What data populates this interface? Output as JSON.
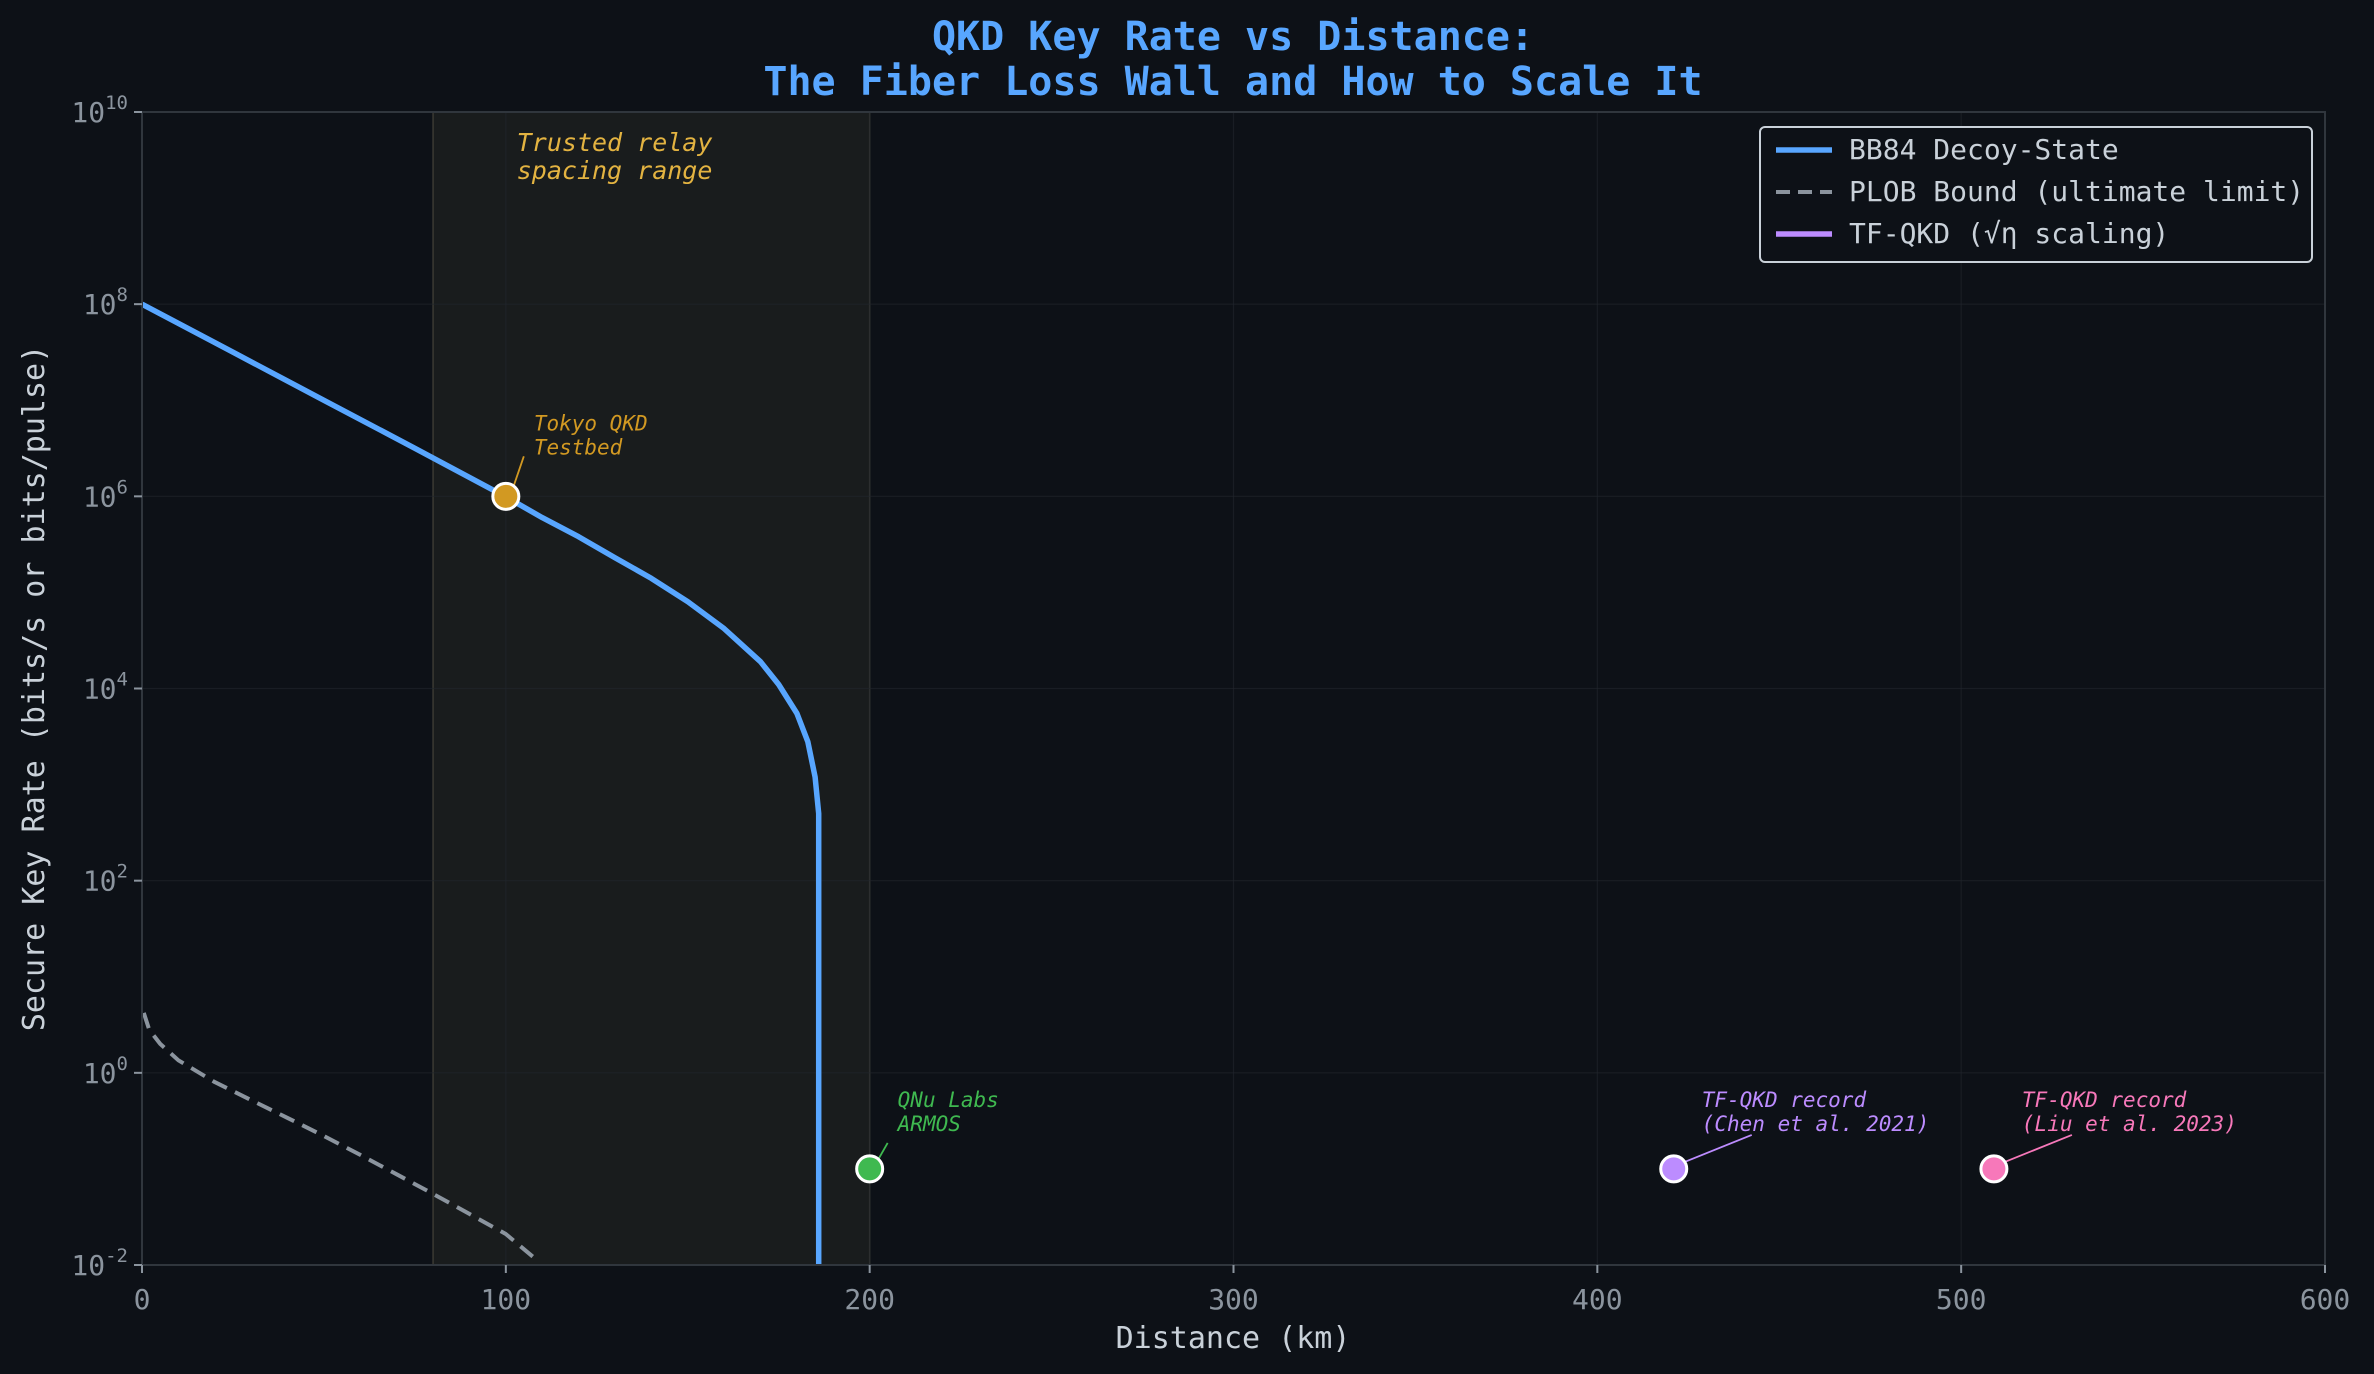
{
  "chart_data": {
    "type": "line",
    "title_line1": "QKD Key Rate vs Distance:",
    "title_line2": "The Fiber Loss Wall and How to Scale It",
    "xlabel": "Distance (km)",
    "ylabel": "Secure Key Rate (bits/s or bits/pulse)",
    "xlim": [
      0,
      600
    ],
    "ylim": [
      0.01,
      10000000000
    ],
    "yscale": "log",
    "x_ticks": [
      "0",
      "100",
      "200",
      "300",
      "400",
      "500",
      "600"
    ],
    "y_tick_base": "10",
    "y_tick_exponents": [
      "-2",
      "0",
      "2",
      "4",
      "6",
      "8",
      "10"
    ],
    "grid": true,
    "legend_position": "top-right",
    "series": [
      {
        "name": "BB84 Decoy-State",
        "color": "#58a6ff",
        "style": "solid",
        "points": [
          [
            0,
            100000000
          ],
          [
            25,
            31600000
          ],
          [
            50,
            10000000
          ],
          [
            75,
            3160000
          ],
          [
            100,
            990000
          ],
          [
            110,
            600000
          ],
          [
            120,
            380000
          ],
          [
            130,
            230000
          ],
          [
            140,
            140000
          ],
          [
            150,
            80000
          ],
          [
            160,
            42000
          ],
          [
            170,
            19000
          ],
          [
            175,
            11000
          ],
          [
            180,
            5500
          ],
          [
            183,
            2800
          ],
          [
            185,
            1200
          ],
          [
            186,
            500
          ],
          [
            186,
            0.01
          ]
        ]
      },
      {
        "name": "PLOB Bound (ultimate limit)",
        "color": "#8b949e",
        "style": "dashed",
        "points": [
          [
            0.5,
            4.2
          ],
          [
            2,
            2.8
          ],
          [
            5,
            2.0
          ],
          [
            10,
            1.35
          ],
          [
            20,
            0.8
          ],
          [
            30,
            0.52
          ],
          [
            40,
            0.34
          ],
          [
            50,
            0.22
          ],
          [
            60,
            0.14
          ],
          [
            70,
            0.088
          ],
          [
            80,
            0.055
          ],
          [
            90,
            0.034
          ],
          [
            100,
            0.021
          ],
          [
            108,
            0.0117
          ]
        ]
      },
      {
        "name": "TF-QKD (√η scaling)",
        "color": "#bc8cff",
        "style": "solid",
        "points": []
      }
    ],
    "shaded_region": {
      "x": [
        80,
        200
      ],
      "label_line1": "Trusted relay",
      "label_line2": "spacing range",
      "label_color": "#e3b341"
    },
    "markers": [
      {
        "x": 100,
        "y": 1000000,
        "color": "#d29922",
        "label_line1": "Tokyo QKD",
        "label_line2": "Testbed"
      },
      {
        "x": 200,
        "y": 0.1,
        "color": "#3fb950",
        "label_line1": "QNu Labs",
        "label_line2": "ARMOS"
      },
      {
        "x": 421,
        "y": 0.1,
        "color": "#bc8cff",
        "label_line1": "TF-QKD record",
        "label_line2": "(Chen et al. 2021)"
      },
      {
        "x": 509,
        "y": 0.1,
        "color": "#f778ba",
        "label_line1": "TF-QKD record",
        "label_line2": "(Liu et al. 2023)"
      }
    ]
  }
}
